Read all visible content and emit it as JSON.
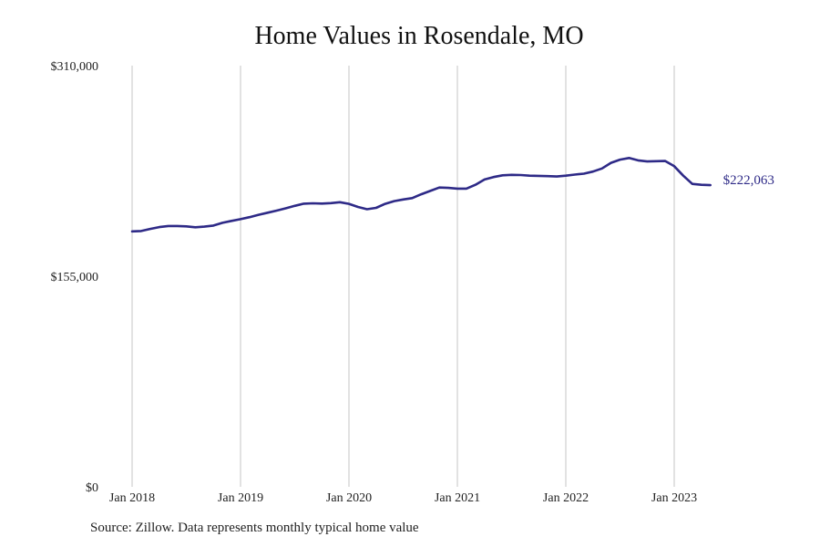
{
  "chart_data": {
    "type": "line",
    "title": "Home Values in Rosendale, MO",
    "xlabel": "",
    "ylabel": "",
    "ylim": [
      0,
      310000
    ],
    "y_ticks": [
      {
        "value": 0,
        "label": "$0"
      },
      {
        "value": 155000,
        "label": "$155,000"
      },
      {
        "value": 310000,
        "label": "$310,000"
      }
    ],
    "x_ticks": [
      {
        "value": "2018-01",
        "label": "Jan 2018"
      },
      {
        "value": "2019-01",
        "label": "Jan 2019"
      },
      {
        "value": "2020-01",
        "label": "Jan 2020"
      },
      {
        "value": "2021-01",
        "label": "Jan 2021"
      },
      {
        "value": "2022-01",
        "label": "Jan 2022"
      },
      {
        "value": "2023-01",
        "label": "Jan 2023"
      }
    ],
    "grid": {
      "vertical": true,
      "horizontal": false
    },
    "line_color": "#2e2a87",
    "series": [
      {
        "x": [
          "2018-01",
          "2018-02",
          "2018-03",
          "2018-04",
          "2018-05",
          "2018-06",
          "2018-07",
          "2018-08",
          "2018-09",
          "2018-10",
          "2018-11",
          "2018-12",
          "2019-01",
          "2019-02",
          "2019-03",
          "2019-04",
          "2019-05",
          "2019-06",
          "2019-07",
          "2019-08",
          "2019-09",
          "2019-10",
          "2019-11",
          "2019-12",
          "2020-01",
          "2020-02",
          "2020-03",
          "2020-04",
          "2020-05",
          "2020-06",
          "2020-07",
          "2020-08",
          "2020-09",
          "2020-10",
          "2020-11",
          "2020-12",
          "2021-01",
          "2021-02",
          "2021-03",
          "2021-04",
          "2021-05",
          "2021-06",
          "2021-07",
          "2021-08",
          "2021-09",
          "2021-10",
          "2021-11",
          "2021-12",
          "2022-01",
          "2022-02",
          "2022-03",
          "2022-04",
          "2022-05",
          "2022-06",
          "2022-07",
          "2022-08",
          "2022-09",
          "2022-10",
          "2022-11",
          "2022-12",
          "2023-01",
          "2023-02",
          "2023-03",
          "2023-04",
          "2023-05"
        ],
        "values": [
          188000,
          188300,
          189800,
          191200,
          192000,
          192000,
          191700,
          191000,
          191500,
          192300,
          194300,
          195700,
          197000,
          198500,
          200200,
          201800,
          203300,
          205000,
          206800,
          208400,
          208700,
          208500,
          208800,
          209500,
          208300,
          206000,
          204300,
          205300,
          208300,
          210300,
          211500,
          212500,
          215300,
          217800,
          220300,
          220000,
          219500,
          219500,
          222300,
          226200,
          228000,
          229300,
          229600,
          229500,
          229000,
          228900,
          228700,
          228400,
          229000,
          229800,
          230500,
          232000,
          234300,
          238500,
          240800,
          242000,
          240300,
          239500,
          239700,
          239800,
          236000,
          229000,
          223000,
          222300,
          222063
        ]
      }
    ],
    "end_label": "$222,063"
  },
  "source_note": "Source: Zillow. Data represents monthly typical home value"
}
